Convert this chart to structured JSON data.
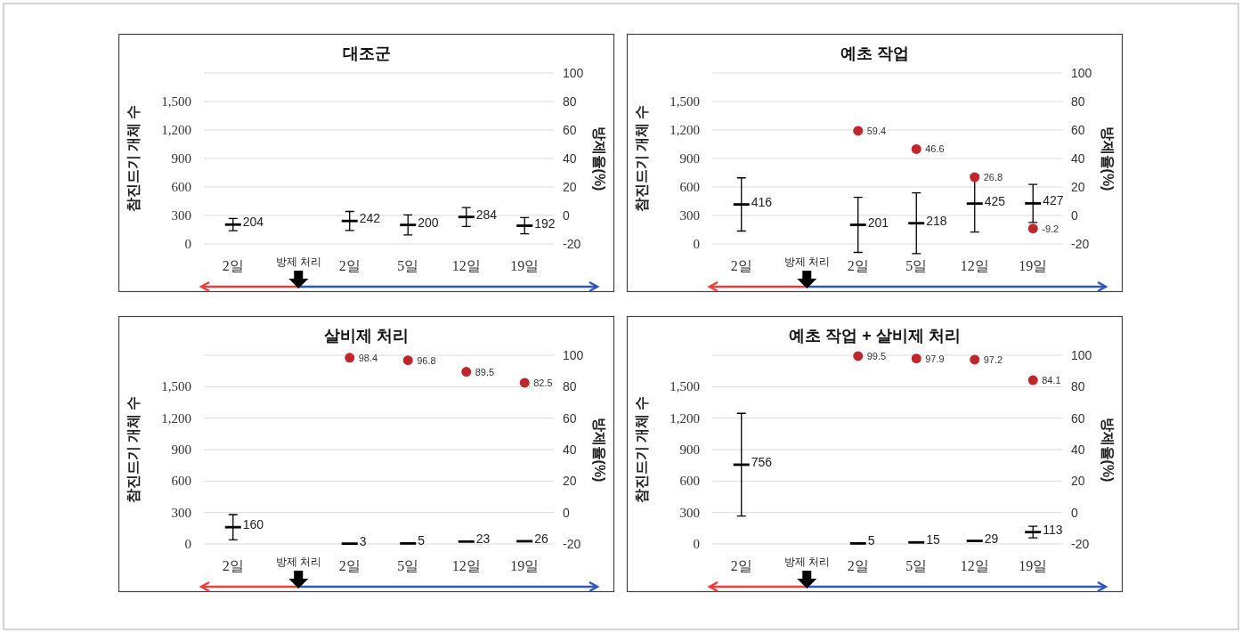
{
  "chart_data": [
    {
      "type": "scatter",
      "title": "대조군",
      "ylabel": "참진드기 개체 수",
      "y2label": "방제율(%)",
      "categories": [
        "2일",
        null,
        "2일",
        "5일",
        "12일",
        "19일"
      ],
      "ylim": [
        0,
        1800
      ],
      "yticks": [
        0,
        300,
        600,
        900,
        {
          "value": 1200,
          "label": "1,200"
        },
        {
          "value": 1500,
          "label": "1,500"
        },
        {
          "value": 1800,
          "label": null
        }
      ],
      "y2lim": [
        -20,
        100
      ],
      "y2ticks": [
        -20,
        0,
        20,
        40,
        60,
        80,
        100
      ],
      "grid": "y",
      "data_labels": true,
      "annotations": [
        "방제 처리"
      ],
      "series": [
        {
          "color": "#000000",
          "values": [
            204,
            null,
            242,
            200,
            284,
            192
          ],
          "errors": [
            65,
            null,
            100,
            105,
            100,
            85
          ]
        }
      ]
    },
    {
      "type": "scatter",
      "title": "예초 작업",
      "ylabel": "참진드기 개체 수",
      "y2label": "방제율(%)",
      "categories": [
        "2일",
        null,
        "2일",
        "5일",
        "12일",
        "19일"
      ],
      "ylim": [
        0,
        1800
      ],
      "yticks": [
        0,
        300,
        600,
        900,
        {
          "value": 1200,
          "label": "1,200"
        },
        {
          "value": 1500,
          "label": "1,500"
        },
        {
          "value": 1800,
          "label": null
        }
      ],
      "y2lim": [
        -20,
        100
      ],
      "y2ticks": [
        -20,
        0,
        20,
        40,
        60,
        80,
        100
      ],
      "grid": "y",
      "data_labels": true,
      "annotations": [
        "방제 처리"
      ],
      "series": [
        {
          "color": "#000000",
          "values": [
            416,
            null,
            201,
            218,
            425,
            427
          ],
          "errors": [
            280,
            null,
            290,
            320,
            300,
            200
          ]
        },
        {
          "axis": "y2",
          "color": "#c0272d",
          "marker": "circle",
          "values": [
            null,
            null,
            59.4,
            46.6,
            26.8,
            -9.2
          ]
        }
      ]
    },
    {
      "type": "scatter",
      "title": "살비제 처리",
      "ylabel": "참진드기 개체 수",
      "y2label": "방제율(%)",
      "categories": [
        "2일",
        null,
        "2일",
        "5일",
        "12일",
        "19일"
      ],
      "ylim": [
        0,
        1800
      ],
      "yticks": [
        0,
        300,
        600,
        900,
        {
          "value": 1200,
          "label": "1,200"
        },
        {
          "value": 1500,
          "label": "1,500"
        },
        {
          "value": 1800,
          "label": null
        }
      ],
      "y2lim": [
        -20,
        100
      ],
      "y2ticks": [
        -20,
        0,
        20,
        40,
        60,
        80,
        100
      ],
      "grid": "y",
      "data_labels": true,
      "annotations": [
        "방제 처리"
      ],
      "series": [
        {
          "color": "#000000",
          "values": [
            160,
            null,
            3,
            5,
            23,
            26
          ],
          "errors": [
            120,
            null,
            null,
            null,
            null,
            null
          ]
        },
        {
          "axis": "y2",
          "color": "#c0272d",
          "marker": "circle",
          "values": [
            null,
            null,
            98.4,
            96.8,
            89.5,
            82.5
          ]
        }
      ]
    },
    {
      "type": "scatter",
      "title": "예초 작업 + 살비제 처리",
      "ylabel": "참진드기 개체 수",
      "y2label": "방제율(%)",
      "categories": [
        "2일",
        null,
        "2일",
        "5일",
        "12일",
        "19일"
      ],
      "ylim": [
        0,
        1800
      ],
      "yticks": [
        0,
        300,
        600,
        900,
        {
          "value": 1200,
          "label": "1,200"
        },
        {
          "value": 1500,
          "label": "1,500"
        },
        {
          "value": 1800,
          "label": null
        }
      ],
      "y2lim": [
        -20,
        100
      ],
      "y2ticks": [
        -20,
        0,
        20,
        40,
        60,
        80,
        100
      ],
      "grid": "y",
      "data_labels": true,
      "annotations": [
        "방제 처리"
      ],
      "series": [
        {
          "color": "#000000",
          "values": [
            756,
            null,
            5,
            15,
            29,
            113
          ],
          "errors": [
            490,
            null,
            null,
            null,
            null,
            55
          ]
        },
        {
          "axis": "y2",
          "color": "#c0272d",
          "marker": "circle",
          "values": [
            null,
            null,
            99.5,
            97.9,
            97.2,
            84.1
          ]
        }
      ]
    }
  ]
}
